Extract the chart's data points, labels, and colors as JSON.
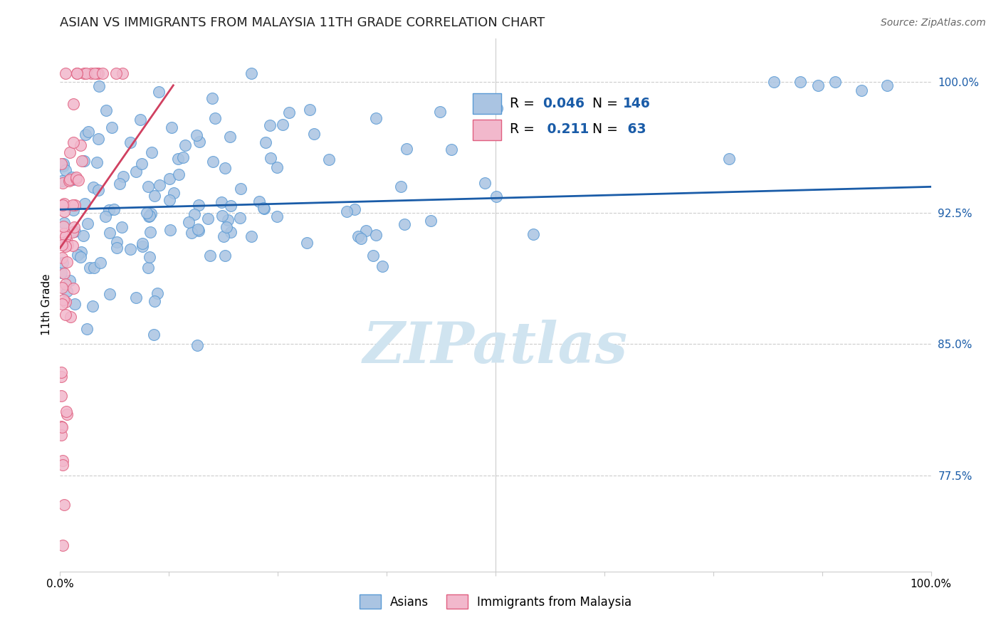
{
  "title": "ASIAN VS IMMIGRANTS FROM MALAYSIA 11TH GRADE CORRELATION CHART",
  "source": "Source: ZipAtlas.com",
  "ylabel": "11th Grade",
  "xmin": 0.0,
  "xmax": 1.0,
  "ymin": 0.72,
  "ymax": 1.025,
  "yticks": [
    0.775,
    0.85,
    0.925,
    1.0
  ],
  "ytick_labels": [
    "77.5%",
    "85.0%",
    "92.5%",
    "100.0%"
  ],
  "xtick_positions": [
    0.0,
    0.125,
    0.25,
    0.375,
    0.5,
    0.625,
    0.75,
    0.875,
    1.0
  ],
  "asian_R": 0.046,
  "asian_N": 146,
  "malaysia_R": 0.211,
  "malaysia_N": 63,
  "asian_color": "#aac4e2",
  "asian_edge_color": "#5b9bd5",
  "malaysia_color": "#f2b8cc",
  "malaysia_edge_color": "#e06080",
  "asian_line_color": "#1a5ca8",
  "malaysia_line_color": "#d04060",
  "watermark_color": "#d0e4f0",
  "watermark": "ZIPatlas",
  "legend_asian_label": "Asians",
  "legend_malaysia_label": "Immigrants from Malaysia",
  "legend_text_color": "#1a5ca8",
  "grid_color": "#cccccc",
  "title_color": "#222222",
  "source_color": "#666666",
  "asian_line_y_at_0": 0.927,
  "asian_line_y_at_1": 0.94,
  "malaysia_line_y_at_0": 0.905,
  "malaysia_line_x_end": 0.13,
  "malaysia_line_y_end": 0.998
}
